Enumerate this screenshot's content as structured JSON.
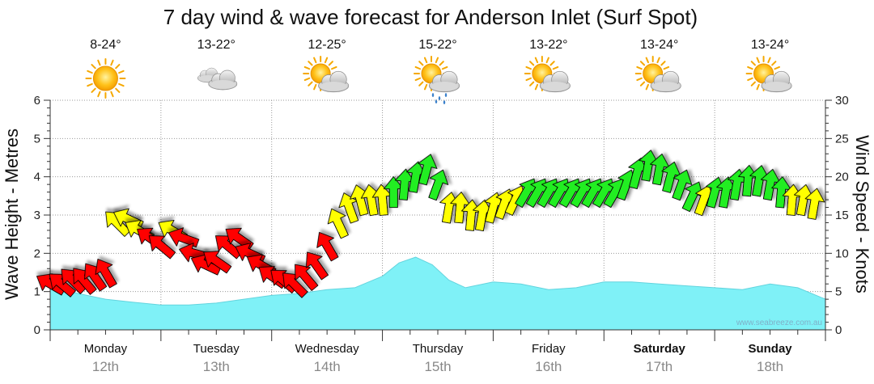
{
  "chart_data": {
    "type": "area+arrows",
    "title": "7 day wind & wave forecast for Anderson Inlet (Surf Spot)",
    "ylabel_left": "Wave Height - Metres",
    "ylabel_right": "Wind Speed - Knots",
    "ylim_left": [
      0,
      6
    ],
    "ylim_right": [
      0,
      30
    ],
    "yticks_left": [
      "0",
      "1",
      "2",
      "3",
      "4",
      "5",
      "6"
    ],
    "yticks_right": [
      "0",
      "5",
      "10",
      "15",
      "20",
      "25",
      "30"
    ],
    "watermark": "www.seabreeze.com.au",
    "days": [
      {
        "day": "Monday",
        "date": "12th",
        "temp": "8-24°",
        "icon": "sun-icon",
        "bold": false
      },
      {
        "day": "Tuesday",
        "date": "13th",
        "temp": "13-22°",
        "icon": "cloud-icon",
        "bold": false
      },
      {
        "day": "Wednesday",
        "date": "14th",
        "temp": "12-25°",
        "icon": "sun-cloud-icon",
        "bold": false
      },
      {
        "day": "Thursday",
        "date": "15th",
        "temp": "15-22°",
        "icon": "sun-cloud-rain-icon",
        "bold": false
      },
      {
        "day": "Friday",
        "date": "16th",
        "temp": "13-22°",
        "icon": "sun-cloud-icon",
        "bold": false
      },
      {
        "day": "Saturday",
        "date": "17th",
        "temp": "13-24°",
        "icon": "sun-cloud-icon",
        "bold": true
      },
      {
        "day": "Sunday",
        "date": "18th",
        "temp": "13-24°",
        "icon": "sun-cloud-icon",
        "bold": true
      }
    ],
    "wave_x_days": [
      0,
      0.25,
      0.5,
      0.75,
      1.0,
      1.25,
      1.5,
      1.75,
      2.0,
      2.25,
      2.5,
      2.75,
      3.0,
      3.15,
      3.3,
      3.45,
      3.6,
      3.75,
      4.0,
      4.25,
      4.5,
      4.75,
      5.0,
      5.25,
      5.5,
      5.75,
      6.0,
      6.25,
      6.5,
      6.75,
      7.0
    ],
    "wave_heights_m": [
      1.15,
      0.95,
      0.8,
      0.72,
      0.65,
      0.65,
      0.7,
      0.8,
      0.9,
      0.95,
      1.05,
      1.1,
      1.4,
      1.75,
      1.9,
      1.7,
      1.3,
      1.1,
      1.25,
      1.2,
      1.05,
      1.1,
      1.25,
      1.25,
      1.2,
      1.15,
      1.1,
      1.05,
      1.2,
      1.1,
      0.8
    ],
    "wind_x_days": [
      0.0,
      0.1,
      0.2,
      0.3,
      0.4,
      0.5,
      0.6,
      0.7,
      0.8,
      0.9,
      1.0,
      1.1,
      1.2,
      1.3,
      1.4,
      1.5,
      1.6,
      1.7,
      1.8,
      1.9,
      2.0,
      2.1,
      2.2,
      2.3,
      2.4,
      2.5,
      2.6,
      2.7,
      2.8,
      2.9,
      3.0,
      3.1,
      3.2,
      3.3,
      3.4,
      3.5,
      3.6,
      3.7,
      3.8,
      3.9,
      4.0,
      4.1,
      4.2,
      4.3,
      4.4,
      4.5,
      4.6,
      4.7,
      4.8,
      4.9,
      5.0,
      5.1,
      5.2,
      5.3,
      5.4,
      5.5,
      5.6,
      5.7,
      5.8,
      5.9,
      6.0,
      6.1,
      6.2,
      6.3,
      6.4,
      6.5,
      6.6,
      6.7,
      6.8,
      6.9
    ],
    "wind_speed_kn": [
      6,
      6,
      6.5,
      6.5,
      7,
      7.5,
      14,
      14.5,
      13,
      12,
      11,
      13,
      12,
      10,
      8.5,
      9,
      11,
      12,
      10,
      8.5,
      7,
      6.5,
      6,
      7,
      8.5,
      11,
      14,
      16,
      17,
      17,
      17,
      18,
      19,
      20,
      21,
      19,
      16,
      16,
      15,
      15,
      16,
      16.5,
      17,
      18,
      18,
      18,
      18,
      18,
      18,
      18,
      18,
      18,
      19,
      20.5,
      21.5,
      21,
      20,
      19,
      17.5,
      17,
      18,
      18,
      19,
      19.5,
      19.5,
      19,
      18,
      17,
      17,
      16.5
    ],
    "wind_dir_deg": [
      30,
      40,
      45,
      50,
      55,
      60,
      45,
      25,
      30,
      35,
      40,
      30,
      20,
      15,
      25,
      35,
      40,
      35,
      25,
      30,
      35,
      40,
      45,
      50,
      55,
      60,
      65,
      70,
      75,
      80,
      85,
      90,
      95,
      100,
      105,
      110,
      100,
      95,
      95,
      100,
      105,
      110,
      115,
      120,
      120,
      120,
      120,
      120,
      120,
      120,
      120,
      120,
      110,
      105,
      100,
      100,
      105,
      110,
      115,
      110,
      105,
      100,
      100,
      95,
      100,
      100,
      95,
      95,
      100,
      100
    ]
  }
}
